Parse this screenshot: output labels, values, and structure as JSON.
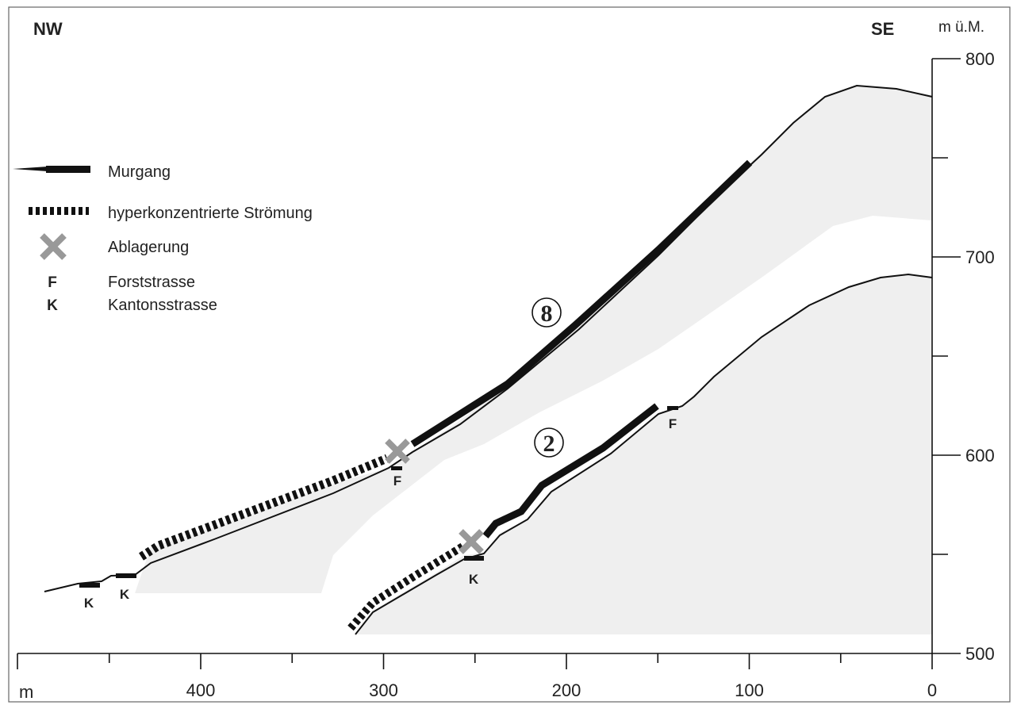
{
  "directions": {
    "left": "NW",
    "right": "SE"
  },
  "y_axis": {
    "unit_label": "m ü.M.",
    "ticks": [
      {
        "value": 800,
        "label": "800"
      },
      {
        "value": 700,
        "label": "700"
      },
      {
        "value": 600,
        "label": "600"
      },
      {
        "value": 500,
        "label": "500"
      }
    ],
    "range": [
      500,
      800
    ],
    "minor_step": 50
  },
  "x_axis": {
    "unit_label": "m",
    "ticks": [
      {
        "value": 400,
        "label": "400"
      },
      {
        "value": 300,
        "label": "300"
      },
      {
        "value": 200,
        "label": "200"
      },
      {
        "value": 100,
        "label": "100"
      },
      {
        "value": 0,
        "label": "0"
      }
    ],
    "range": [
      500,
      0
    ],
    "minor_step": 50,
    "reversed": true
  },
  "legend": {
    "murgang": "Murgang",
    "hyper": "hyperkonzentrierte Strömung",
    "ablagerung": "Ablagerung",
    "forst_symbol": "F",
    "forst": "Forststrasse",
    "kanton_symbol": "K",
    "kanton": "Kantonsstrasse"
  },
  "profiles": {
    "upper_label": "8",
    "lower_label": "2"
  },
  "road_labels": {
    "k1": "K",
    "k2": "K",
    "f_upper": "F",
    "k_lower": "K",
    "f_lower": "F"
  },
  "colors": {
    "terrain_fill": "#efefef",
    "line": "#111111",
    "deposit": "#999999"
  }
}
